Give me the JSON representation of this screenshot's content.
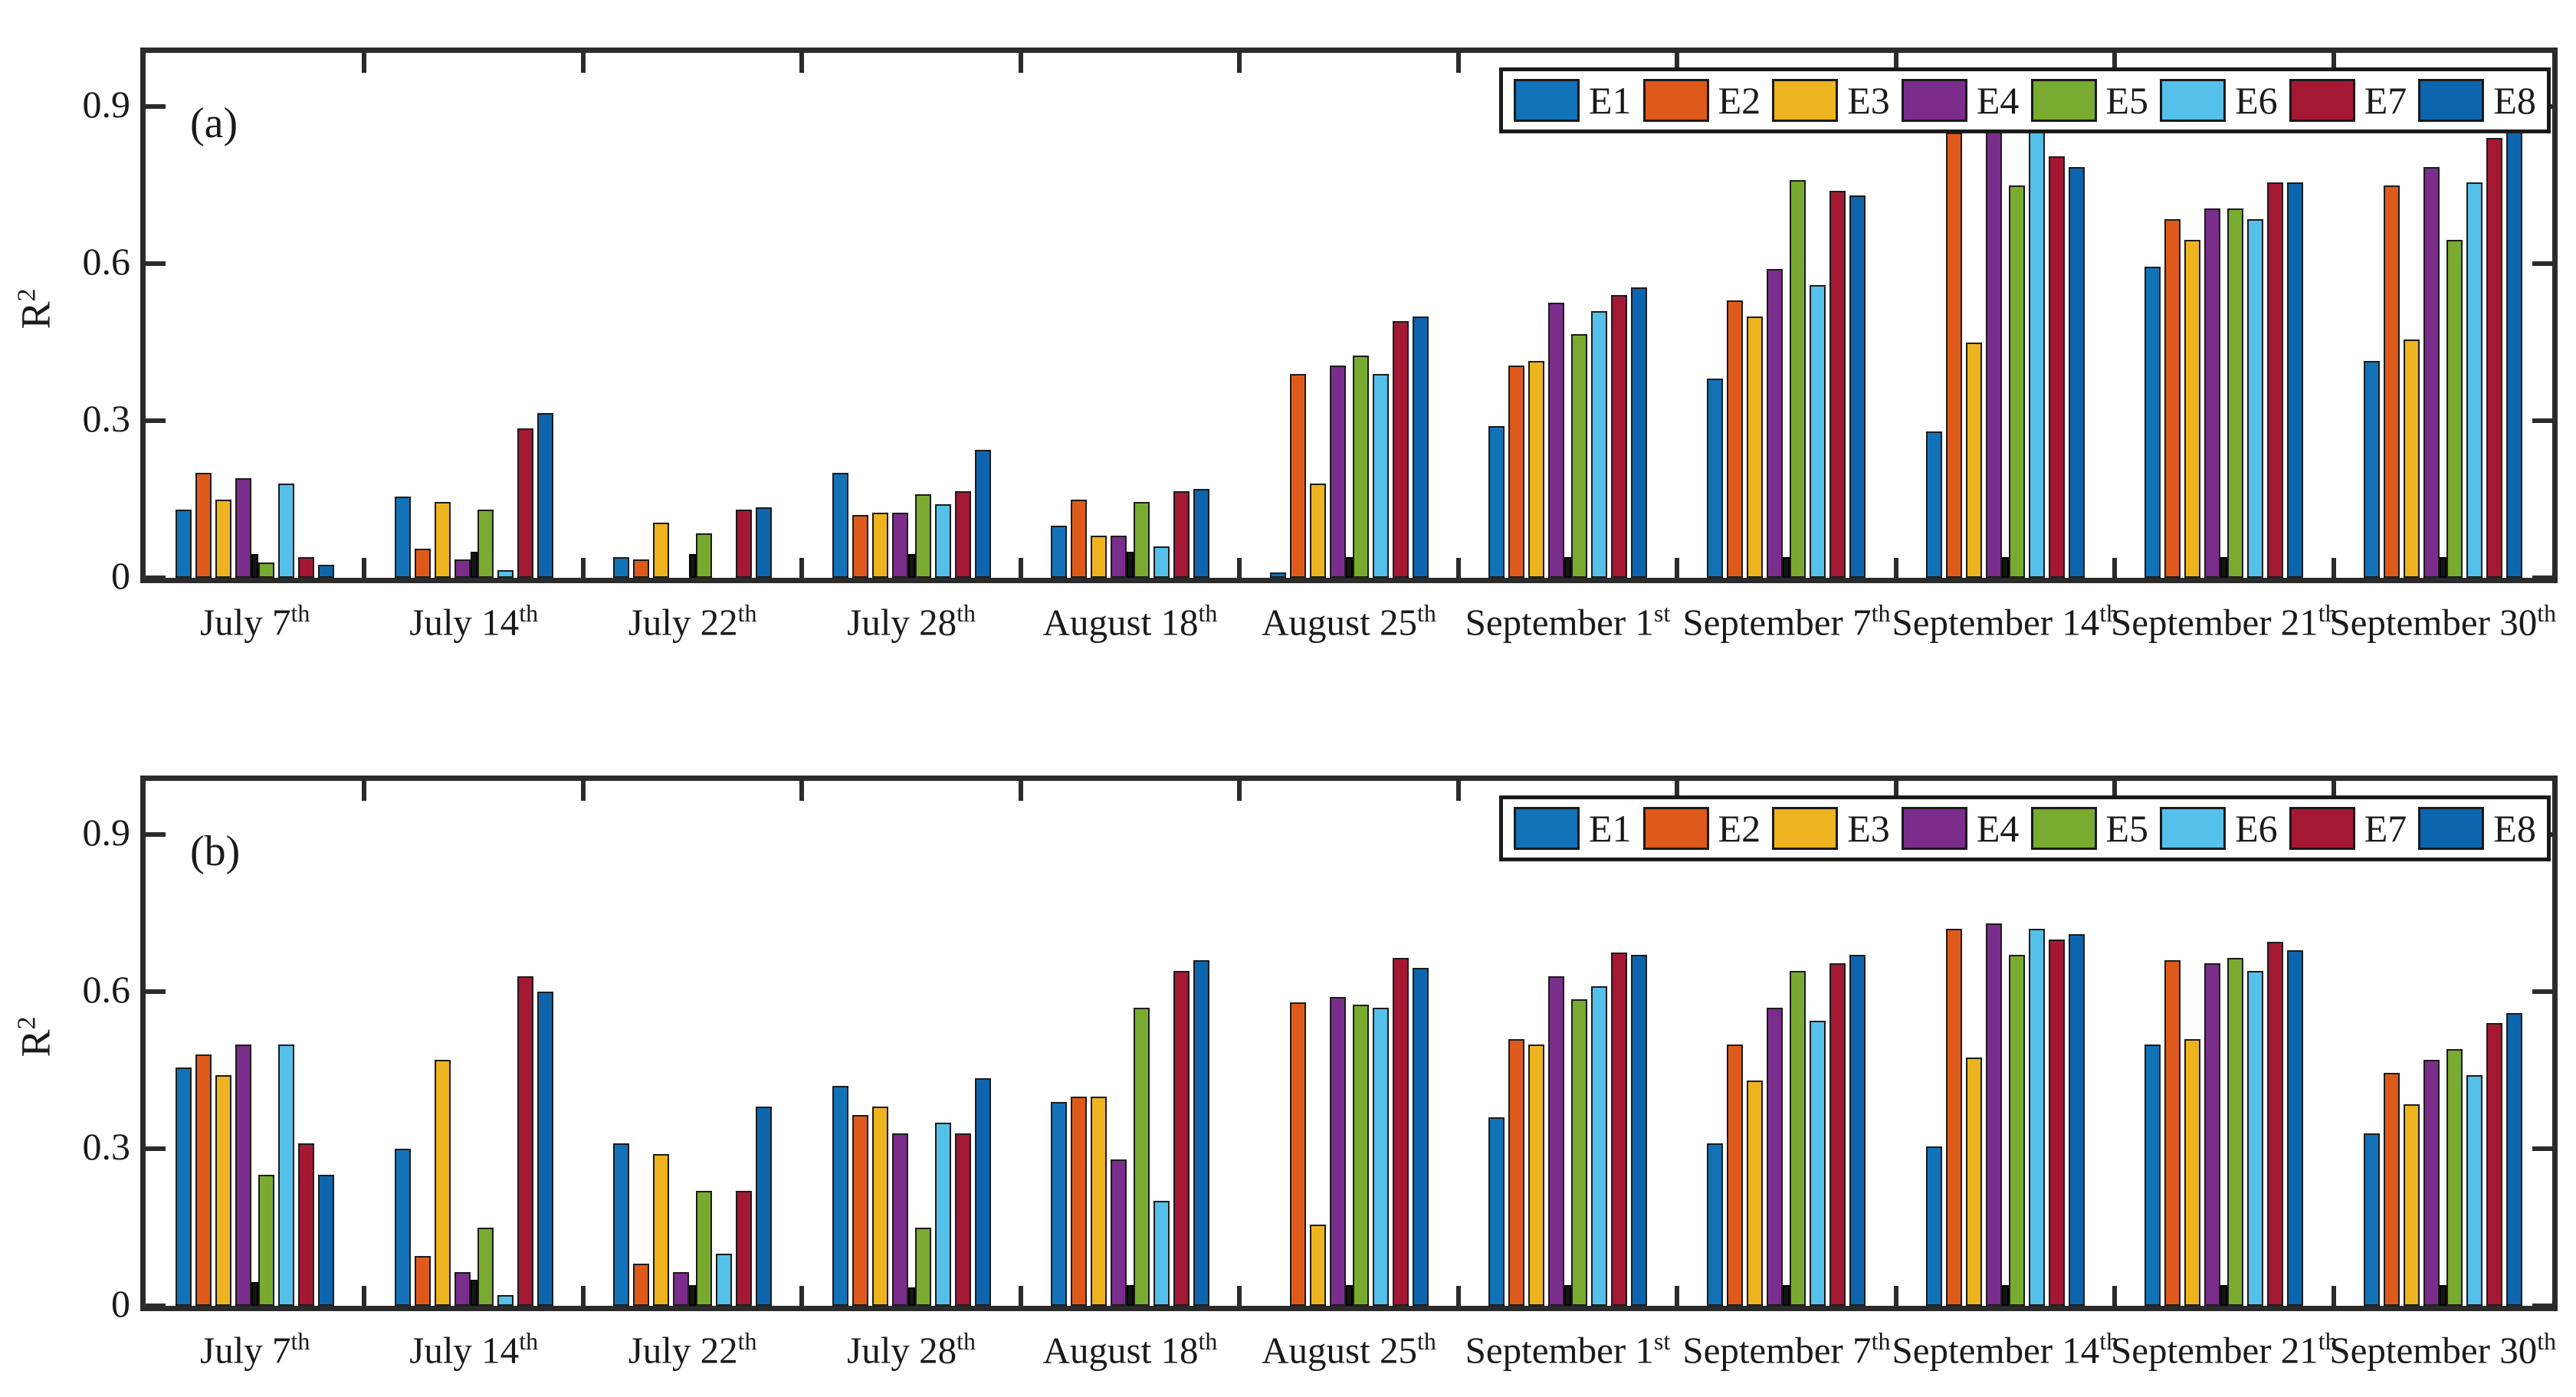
{
  "figure": {
    "ylabel_base": "R",
    "ylabel_sup": "2",
    "panel_a_tag": "(a)",
    "panel_b_tag": "(b)"
  },
  "chart_data": [
    {
      "type": "bar",
      "subplot": "(a)",
      "ylabel": "R2",
      "ylim": [
        0,
        1.0
      ],
      "yticks": [
        0,
        0.3,
        0.6,
        0.9
      ],
      "grid": false,
      "legend_position": "top-right-horizontal",
      "categories": [
        {
          "label": "July 7",
          "sup": "th"
        },
        {
          "label": "July 14",
          "sup": "th"
        },
        {
          "label": "July 22",
          "sup": "th"
        },
        {
          "label": "July 28",
          "sup": "th"
        },
        {
          "label": "August 18",
          "sup": "th"
        },
        {
          "label": "August 25",
          "sup": "th"
        },
        {
          "label": "September 1",
          "sup": "st"
        },
        {
          "label": "September 7",
          "sup": "th"
        },
        {
          "label": "September 14",
          "sup": "th"
        },
        {
          "label": "September 21",
          "sup": "th"
        },
        {
          "label": "September 30",
          "sup": "th"
        }
      ],
      "series": [
        {
          "name": "E1",
          "color": "#1272b8",
          "values": [
            0.13,
            0.155,
            0.04,
            0.2,
            0.1,
            0.01,
            0.29,
            0.38,
            0.28,
            0.595,
            0.415
          ]
        },
        {
          "name": "E2",
          "color": "#de5a1b",
          "values": [
            0.2,
            0.055,
            0.035,
            0.12,
            0.15,
            0.39,
            0.405,
            0.53,
            0.85,
            0.685,
            0.75
          ]
        },
        {
          "name": "E3",
          "color": "#edb41f",
          "values": [
            0.15,
            0.145,
            0.105,
            0.125,
            0.08,
            0.18,
            0.415,
            0.5,
            0.45,
            0.645,
            0.455
          ]
        },
        {
          "name": "E4",
          "color": "#7b2d8b",
          "values": [
            0.19,
            0.035,
            0.0,
            0.125,
            0.08,
            0.405,
            0.525,
            0.59,
            0.86,
            0.705,
            0.785
          ]
        },
        {
          "name": "E5",
          "color": "#78ab30",
          "values": [
            0.03,
            0.13,
            0.085,
            0.16,
            0.145,
            0.425,
            0.465,
            0.76,
            0.75,
            0.705,
            0.645
          ]
        },
        {
          "name": "E6",
          "color": "#55c0e9",
          "values": [
            0.18,
            0.015,
            0.0,
            0.14,
            0.06,
            0.39,
            0.51,
            0.56,
            0.855,
            0.685,
            0.755
          ]
        },
        {
          "name": "E7",
          "color": "#a51834",
          "values": [
            0.04,
            0.285,
            0.13,
            0.165,
            0.165,
            0.49,
            0.54,
            0.74,
            0.805,
            0.755,
            0.84
          ]
        },
        {
          "name": "E8",
          "color": "#0d66ad",
          "values": [
            0.025,
            0.315,
            0.135,
            0.245,
            0.17,
            0.5,
            0.555,
            0.73,
            0.785,
            0.755,
            0.86
          ]
        }
      ],
      "dark_sliver_between_E4_E5": {
        "color": "#151515",
        "values": [
          0.045,
          0.05,
          0.045,
          0.045,
          0.05,
          0.04,
          0.04,
          0.04,
          0.04,
          0.04,
          0.04
        ]
      }
    },
    {
      "type": "bar",
      "subplot": "(b)",
      "ylabel": "R2",
      "ylim": [
        0,
        1.0
      ],
      "yticks": [
        0,
        0.3,
        0.6,
        0.9
      ],
      "grid": false,
      "legend_position": "top-right-horizontal",
      "categories": [
        {
          "label": "July 7",
          "sup": "th"
        },
        {
          "label": "July 14",
          "sup": "th"
        },
        {
          "label": "July 22",
          "sup": "th"
        },
        {
          "label": "July 28",
          "sup": "th"
        },
        {
          "label": "August 18",
          "sup": "th"
        },
        {
          "label": "August 25",
          "sup": "th"
        },
        {
          "label": "September 1",
          "sup": "st"
        },
        {
          "label": "September 7",
          "sup": "th"
        },
        {
          "label": "September 14",
          "sup": "th"
        },
        {
          "label": "September 21",
          "sup": "th"
        },
        {
          "label": "September 30",
          "sup": "th"
        }
      ],
      "series": [
        {
          "name": "E1",
          "color": "#1272b8",
          "values": [
            0.455,
            0.3,
            0.31,
            0.42,
            0.39,
            0.0,
            0.36,
            0.31,
            0.305,
            0.5,
            0.33
          ]
        },
        {
          "name": "E2",
          "color": "#de5a1b",
          "values": [
            0.48,
            0.095,
            0.08,
            0.365,
            0.4,
            0.58,
            0.51,
            0.5,
            0.72,
            0.66,
            0.445
          ]
        },
        {
          "name": "E3",
          "color": "#edb41f",
          "values": [
            0.44,
            0.47,
            0.29,
            0.38,
            0.4,
            0.155,
            0.5,
            0.43,
            0.475,
            0.51,
            0.385
          ]
        },
        {
          "name": "E4",
          "color": "#7b2d8b",
          "values": [
            0.5,
            0.065,
            0.065,
            0.33,
            0.28,
            0.59,
            0.63,
            0.57,
            0.73,
            0.655,
            0.47
          ]
        },
        {
          "name": "E5",
          "color": "#78ab30",
          "values": [
            0.25,
            0.15,
            0.22,
            0.15,
            0.57,
            0.575,
            0.585,
            0.64,
            0.67,
            0.665,
            0.49
          ]
        },
        {
          "name": "E6",
          "color": "#55c0e9",
          "values": [
            0.5,
            0.02,
            0.1,
            0.35,
            0.2,
            0.57,
            0.61,
            0.545,
            0.72,
            0.64,
            0.44
          ]
        },
        {
          "name": "E7",
          "color": "#a51834",
          "values": [
            0.31,
            0.63,
            0.22,
            0.33,
            0.64,
            0.665,
            0.675,
            0.655,
            0.7,
            0.695,
            0.54
          ]
        },
        {
          "name": "E8",
          "color": "#0d66ad",
          "values": [
            0.25,
            0.6,
            0.38,
            0.435,
            0.66,
            0.645,
            0.67,
            0.67,
            0.71,
            0.68,
            0.56
          ]
        }
      ],
      "dark_sliver_between_E4_E5": {
        "color": "#151515",
        "values": [
          0.045,
          0.05,
          0.04,
          0.035,
          0.04,
          0.04,
          0.04,
          0.04,
          0.04,
          0.04,
          0.04
        ]
      }
    }
  ],
  "legend": {
    "entries": [
      "E1",
      "E2",
      "E3",
      "E4",
      "E5",
      "E6",
      "E7",
      "E8"
    ]
  },
  "axis_ticks": {
    "ytick_labels": [
      "0.9",
      "0.6",
      "0.3",
      "0"
    ]
  }
}
